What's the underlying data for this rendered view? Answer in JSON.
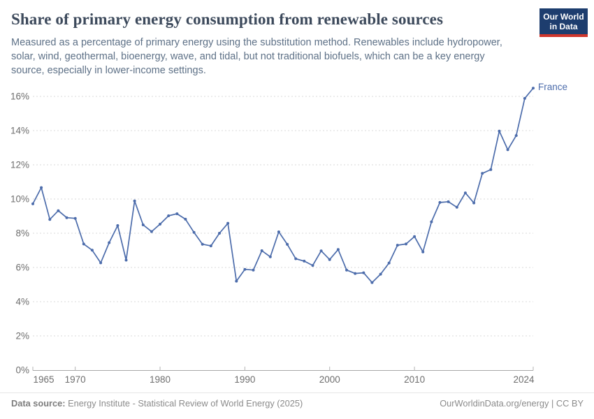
{
  "header": {
    "title": "Share of primary energy consumption from renewable sources",
    "subtitle_lines": [
      "Measured as a percentage of primary energy using the substitution method. Renewables include hydropower,",
      "solar, wind, geothermal, bioenergy, wave, and tidal, but not traditional biofuels, which can be a key energy",
      "source, especially in lower-income settings."
    ]
  },
  "logo": {
    "line1": "Our World",
    "line2": "in Data",
    "bg_color": "#1d3d6e",
    "bar_color": "#cf362c"
  },
  "chart_data": {
    "type": "line",
    "title": "Share of primary energy consumption from renewable sources",
    "xlabel": "",
    "ylabel": "",
    "ylim": [
      0,
      16
    ],
    "yticks": [
      0,
      2,
      4,
      6,
      8,
      10,
      12,
      14,
      16
    ],
    "ytick_suffix": "%",
    "xticks": [
      1965,
      1970,
      1980,
      1990,
      2000,
      2010,
      2024
    ],
    "grid": "horizontal-dashed",
    "legend_position": "end-of-line-label",
    "end_label": "France",
    "series": [
      {
        "name": "France",
        "color": "#4c6cab",
        "x": [
          1965,
          1966,
          1967,
          1968,
          1969,
          1970,
          1971,
          1972,
          1973,
          1974,
          1975,
          1976,
          1977,
          1978,
          1979,
          1980,
          1981,
          1982,
          1983,
          1984,
          1985,
          1986,
          1987,
          1988,
          1989,
          1990,
          1991,
          1992,
          1993,
          1994,
          1995,
          1996,
          1997,
          1998,
          1999,
          2000,
          2001,
          2002,
          2003,
          2004,
          2005,
          2006,
          2007,
          2008,
          2009,
          2010,
          2011,
          2012,
          2013,
          2014,
          2015,
          2016,
          2017,
          2018,
          2019,
          2020,
          2021,
          2022,
          2023,
          2024
        ],
        "values": [
          9.72,
          10.67,
          8.81,
          9.32,
          8.91,
          8.87,
          7.37,
          7.01,
          6.27,
          7.45,
          8.45,
          6.43,
          9.89,
          8.49,
          8.1,
          8.53,
          9.02,
          9.14,
          8.82,
          8.05,
          7.36,
          7.26,
          8.0,
          8.58,
          5.2,
          5.89,
          5.85,
          6.98,
          6.62,
          8.08,
          7.35,
          6.51,
          6.37,
          6.12,
          6.97,
          6.46,
          7.05,
          5.85,
          5.65,
          5.69,
          5.12,
          5.61,
          6.26,
          7.3,
          7.37,
          7.81,
          6.91,
          8.67,
          9.8,
          9.84,
          9.52,
          10.36,
          9.77,
          11.5,
          11.72,
          13.97,
          12.88,
          13.71,
          15.88,
          16.48
        ]
      }
    ]
  },
  "colors": {
    "grid": "#d9d9d9",
    "axis": "#a8a8a8",
    "tick": "#b3b3b3",
    "tick_label": "#6e6e6e"
  },
  "footer": {
    "source_label": "Data source:",
    "source_text": "Energy Institute - Statistical Review of World Energy (2025)",
    "right_text": "OurWorldinData.org/energy | CC BY"
  }
}
